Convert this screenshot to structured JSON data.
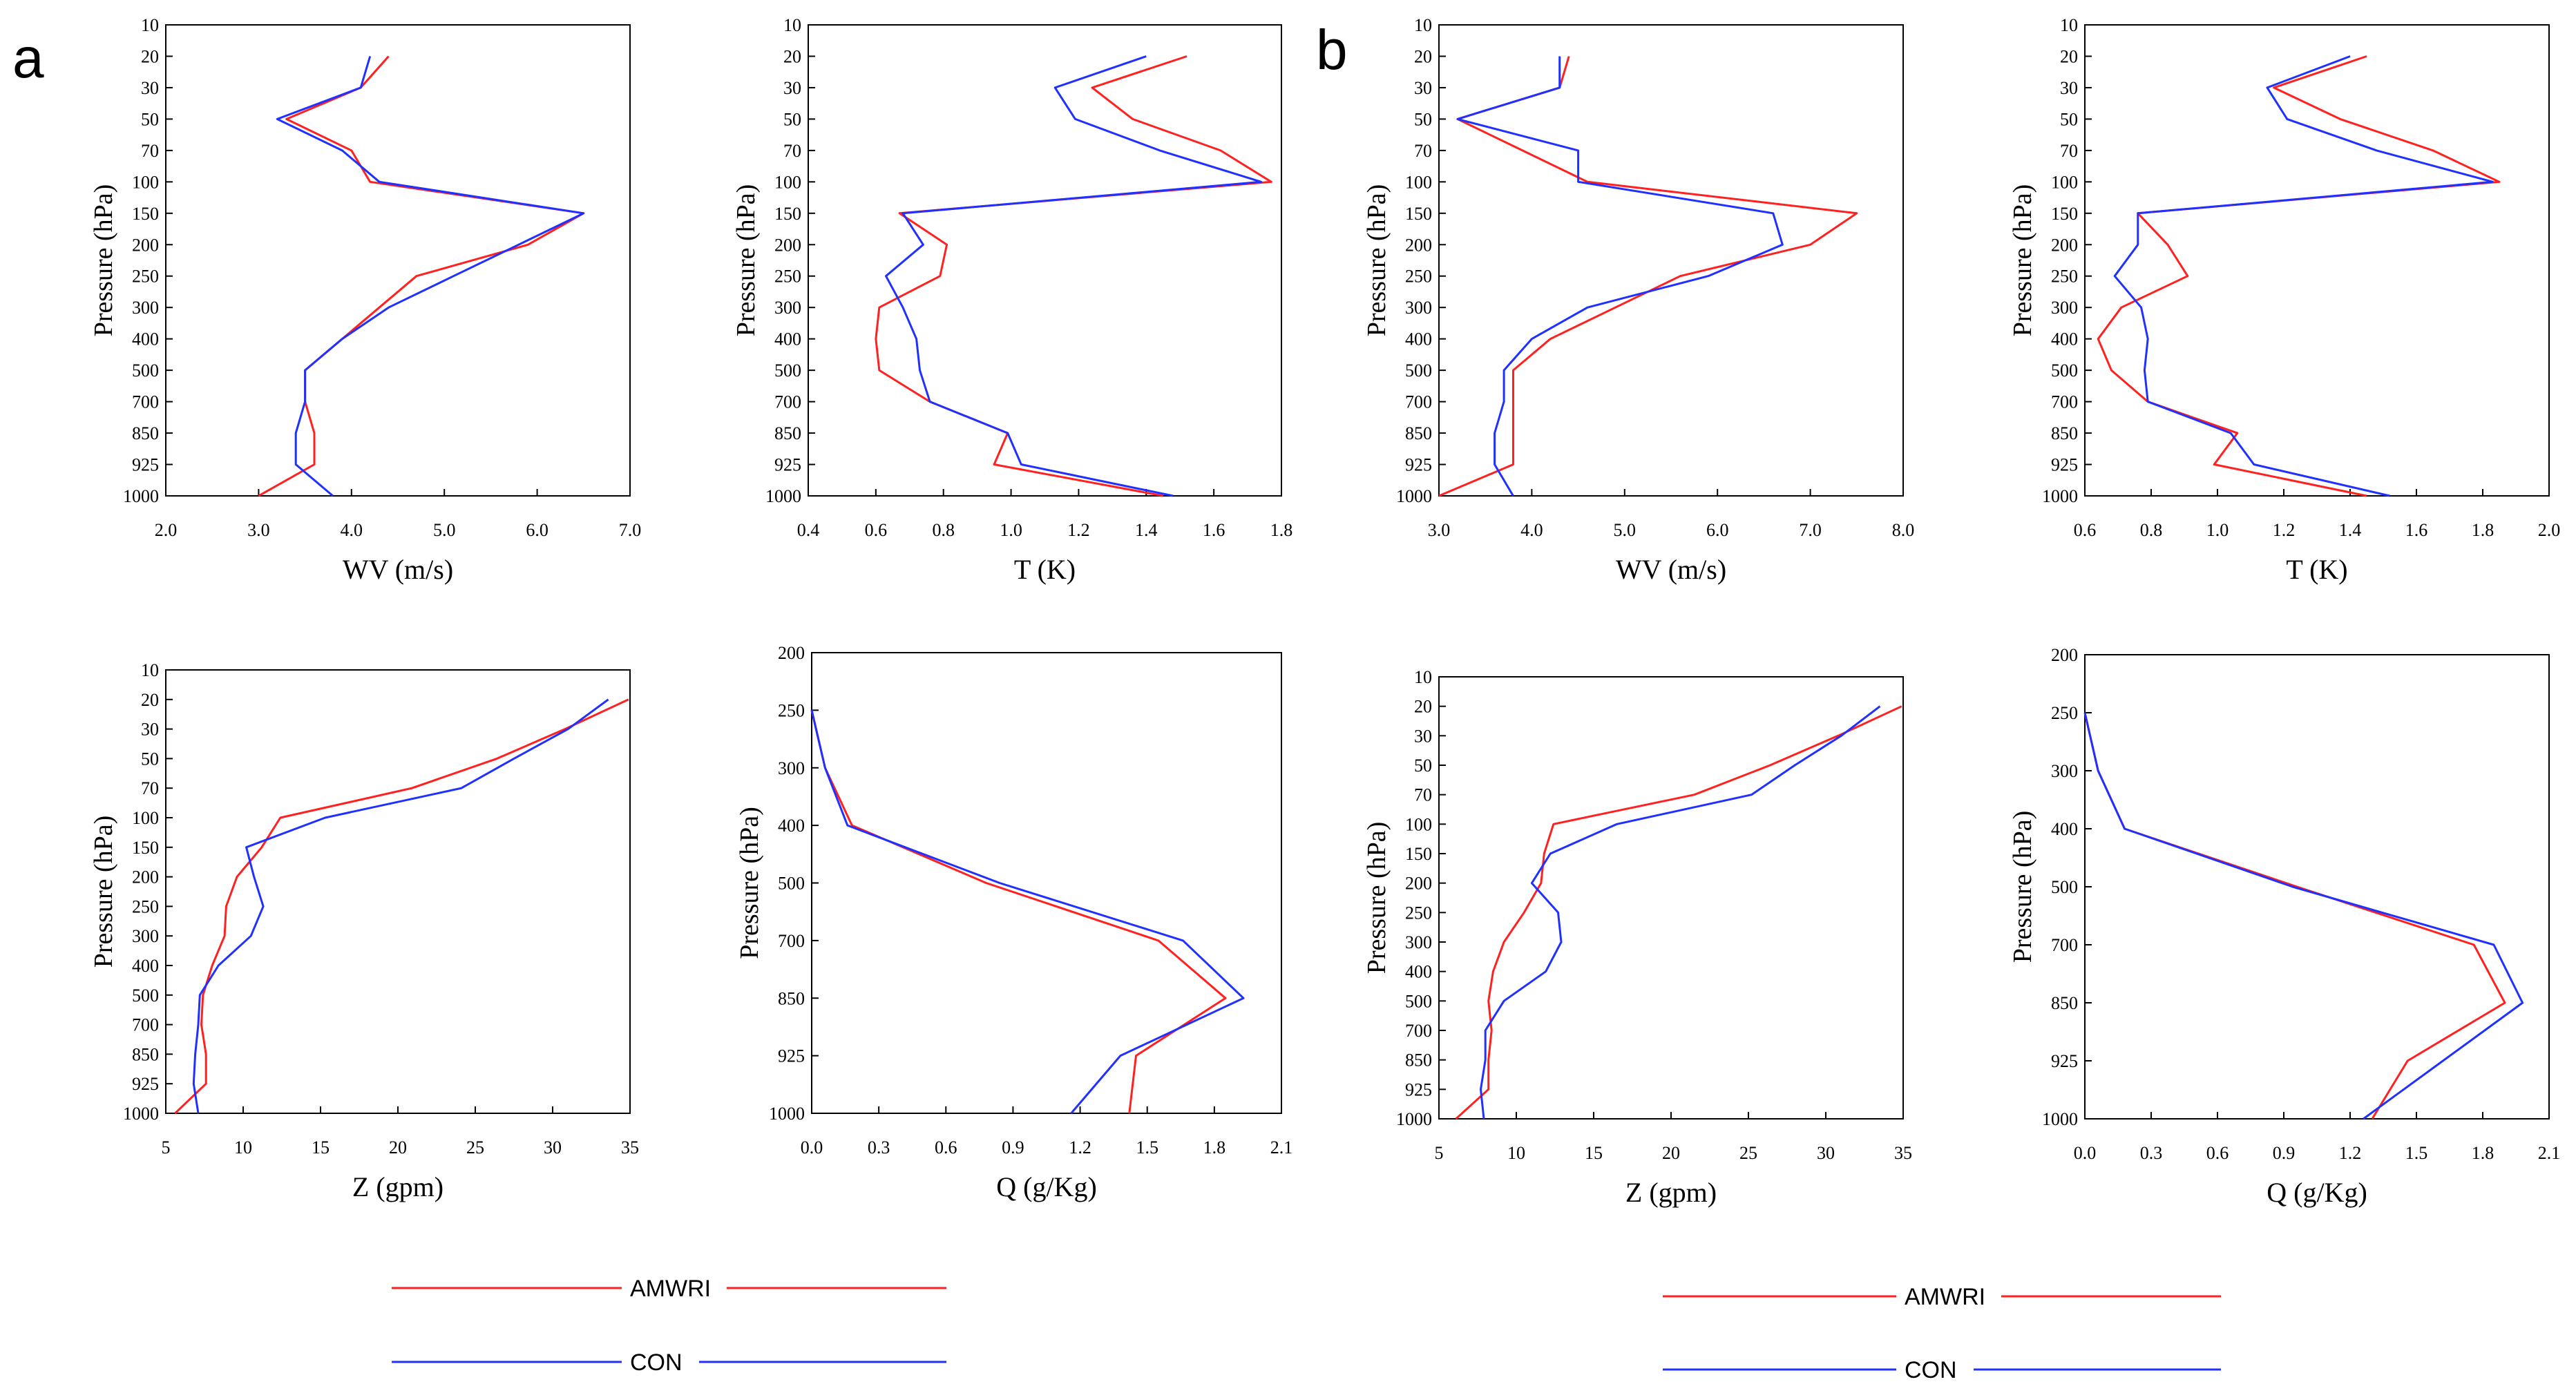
{
  "colors": {
    "amwri": "#ff2020",
    "con": "#2030ff",
    "axis": "#000000"
  },
  "panel_labels": [
    "a",
    "b"
  ],
  "legend": {
    "series": [
      "AMWRI",
      "CON"
    ]
  },
  "chart_data": [
    {
      "id": "a-wv",
      "type": "line",
      "panel": "a",
      "xlabel": "WV (m/s)",
      "ylabel": "Pressure (hPa)",
      "xlim": [
        2.0,
        7.0
      ],
      "xticks": [
        "2.0",
        "3.0",
        "4.0",
        "5.0",
        "6.0",
        "7.0"
      ],
      "yticks": [
        "10",
        "20",
        "30",
        "50",
        "70",
        "100",
        "150",
        "200",
        "250",
        "300",
        "400",
        "500",
        "700",
        "850",
        "925",
        "1000"
      ],
      "series": [
        {
          "name": "AMWRI",
          "values": [
            4.4,
            4.1,
            3.3,
            4.0,
            4.2,
            6.5,
            5.9,
            4.7,
            4.3,
            3.9,
            3.5,
            3.5,
            3.6,
            3.6,
            3.0
          ]
        },
        {
          "name": "CON",
          "values": [
            4.2,
            4.1,
            3.2,
            3.9,
            4.3,
            6.5,
            5.8,
            5.1,
            4.4,
            3.9,
            3.5,
            3.5,
            3.4,
            3.4,
            3.8
          ]
        }
      ]
    },
    {
      "id": "a-t",
      "type": "line",
      "panel": "a",
      "xlabel": "T (K)",
      "ylabel": "Pressure (hPa)",
      "xlim": [
        0.4,
        1.8
      ],
      "xticks": [
        "0.4",
        "0.6",
        "0.8",
        "1.0",
        "1.2",
        "1.4",
        "1.6",
        "1.8"
      ],
      "yticks": [
        "10",
        "20",
        "30",
        "50",
        "70",
        "100",
        "150",
        "200",
        "250",
        "300",
        "400",
        "500",
        "700",
        "850",
        "925",
        "1000"
      ],
      "series": [
        {
          "name": "AMWRI",
          "values": [
            1.52,
            1.24,
            1.36,
            1.62,
            1.77,
            0.67,
            0.81,
            0.79,
            0.61,
            0.6,
            0.61,
            0.76,
            0.99,
            0.95,
            1.45
          ]
        },
        {
          "name": "CON",
          "values": [
            1.4,
            1.13,
            1.19,
            1.44,
            1.74,
            0.68,
            0.74,
            0.63,
            0.68,
            0.72,
            0.73,
            0.76,
            0.99,
            1.03,
            1.48
          ]
        }
      ]
    },
    {
      "id": "a-z",
      "type": "line",
      "panel": "a",
      "xlabel": "Z (gpm)",
      "ylabel": "Pressure (hPa)",
      "xlim": [
        5,
        35
      ],
      "xticks": [
        "5",
        "10",
        "15",
        "20",
        "25",
        "30",
        "35"
      ],
      "yticks": [
        "10",
        "20",
        "30",
        "50",
        "70",
        "100",
        "150",
        "200",
        "250",
        "300",
        "400",
        "500",
        "700",
        "850",
        "925",
        "1000"
      ],
      "series": [
        {
          "name": "AMWRI",
          "values": [
            34.9,
            30.8,
            26.4,
            20.9,
            12.4,
            11.2,
            9.6,
            8.9,
            8.8,
            8.0,
            7.4,
            7.3,
            7.6,
            7.6,
            5.6
          ]
        },
        {
          "name": "CON",
          "values": [
            33.6,
            31.0,
            27.5,
            24.1,
            15.3,
            10.2,
            10.7,
            11.3,
            10.5,
            8.4,
            7.2,
            7.1,
            6.9,
            6.8,
            7.1
          ]
        }
      ]
    },
    {
      "id": "a-q",
      "type": "line",
      "panel": "a",
      "xlabel": "Q (g/Kg)",
      "ylabel": "Pressure (hPa)",
      "xlim": [
        0.0,
        2.1
      ],
      "xticks": [
        "0.0",
        "0.3",
        "0.6",
        "0.9",
        "1.2",
        "1.5",
        "1.8",
        "2.1"
      ],
      "yticks": [
        "200",
        "250",
        "300",
        "400",
        "500",
        "700",
        "850",
        "925",
        "1000"
      ],
      "series": [
        {
          "name": "AMWRI",
          "values": [
            0.0,
            0.06,
            0.18,
            0.78,
            1.55,
            1.85,
            1.45,
            1.42
          ]
        },
        {
          "name": "CON",
          "values": [
            0.0,
            0.06,
            0.16,
            0.84,
            1.66,
            1.93,
            1.38,
            1.16
          ]
        }
      ]
    },
    {
      "id": "b-wv",
      "type": "line",
      "panel": "b",
      "xlabel": "WV (m/s)",
      "ylabel": "Pressure (hPa)",
      "xlim": [
        3.0,
        8.0
      ],
      "xticks": [
        "3.0",
        "4.0",
        "5.0",
        "6.0",
        "7.0",
        "8.0"
      ],
      "yticks": [
        "10",
        "20",
        "30",
        "50",
        "70",
        "100",
        "150",
        "200",
        "250",
        "300",
        "400",
        "500",
        "700",
        "850",
        "925",
        "1000"
      ],
      "series": [
        {
          "name": "AMWRI",
          "values": [
            4.4,
            4.3,
            3.2,
            3.9,
            4.6,
            7.5,
            7.0,
            5.6,
            4.9,
            4.2,
            3.8,
            3.8,
            3.8,
            3.8,
            3.0
          ]
        },
        {
          "name": "CON",
          "values": [
            4.3,
            4.3,
            3.2,
            4.5,
            4.5,
            6.6,
            6.7,
            5.9,
            4.6,
            4.0,
            3.7,
            3.7,
            3.6,
            3.6,
            3.8
          ]
        }
      ]
    },
    {
      "id": "b-t",
      "type": "line",
      "panel": "b",
      "xlabel": "T (K)",
      "ylabel": "Pressure (hPa)",
      "xlim": [
        0.6,
        2.0
      ],
      "xticks": [
        "0.6",
        "0.8",
        "1.0",
        "1.2",
        "1.4",
        "1.6",
        "1.8",
        "2.0"
      ],
      "yticks": [
        "10",
        "20",
        "30",
        "50",
        "70",
        "100",
        "150",
        "200",
        "250",
        "300",
        "400",
        "500",
        "700",
        "850",
        "925",
        "1000"
      ],
      "series": [
        {
          "name": "AMWRI",
          "values": [
            1.45,
            1.17,
            1.37,
            1.65,
            1.85,
            0.76,
            0.85,
            0.91,
            0.71,
            0.64,
            0.68,
            0.79,
            1.06,
            0.99,
            1.45
          ]
        },
        {
          "name": "CON",
          "values": [
            1.4,
            1.15,
            1.21,
            1.48,
            1.83,
            0.76,
            0.76,
            0.69,
            0.77,
            0.79,
            0.78,
            0.79,
            1.04,
            1.11,
            1.52
          ]
        }
      ]
    },
    {
      "id": "b-z",
      "type": "line",
      "panel": "b",
      "xlabel": "Z (gpm)",
      "ylabel": "Pressure (hPa)",
      "xlim": [
        5,
        35
      ],
      "xticks": [
        "5",
        "10",
        "15",
        "20",
        "25",
        "30",
        "35"
      ],
      "yticks": [
        "10",
        "20",
        "30",
        "50",
        "70",
        "100",
        "150",
        "200",
        "250",
        "300",
        "400",
        "500",
        "700",
        "850",
        "925",
        "1000"
      ],
      "series": [
        {
          "name": "AMWRI",
          "values": [
            34.9,
            30.8,
            26.4,
            21.5,
            12.4,
            11.8,
            11.6,
            10.5,
            9.2,
            8.5,
            8.2,
            8.4,
            8.2,
            8.2,
            6.1
          ]
        },
        {
          "name": "CON",
          "values": [
            33.5,
            31.0,
            28.0,
            25.2,
            16.5,
            12.2,
            11.0,
            12.7,
            12.9,
            11.9,
            9.2,
            8.0,
            8.0,
            7.7,
            7.9
          ]
        }
      ]
    },
    {
      "id": "b-q",
      "type": "line",
      "panel": "b",
      "xlabel": "Q (g/Kg)",
      "ylabel": "Pressure (hPa)",
      "xlim": [
        0.0,
        2.1
      ],
      "xticks": [
        "0.0",
        "0.3",
        "0.6",
        "0.9",
        "1.2",
        "1.5",
        "1.8",
        "2.1"
      ],
      "yticks": [
        "200",
        "250",
        "300",
        "400",
        "500",
        "700",
        "850",
        "925",
        "1000"
      ],
      "series": [
        {
          "name": "AMWRI",
          "values": [
            0.0,
            0.06,
            0.18,
            0.96,
            1.76,
            1.9,
            1.46,
            1.3
          ]
        },
        {
          "name": "CON",
          "values": [
            0.0,
            0.06,
            0.18,
            0.94,
            1.85,
            1.98,
            1.62,
            1.26
          ]
        }
      ]
    }
  ]
}
